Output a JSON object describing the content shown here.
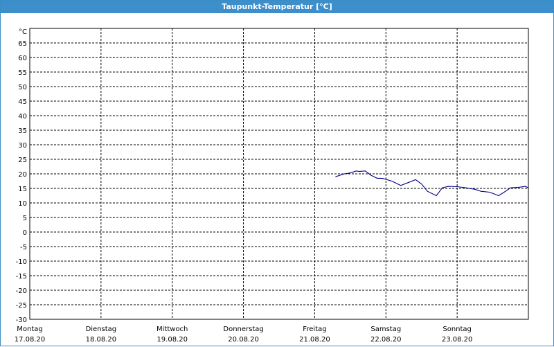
{
  "window": {
    "title": "Taupunkt-Temperatur [°C]",
    "title_bg": "#3d8fcc",
    "title_color": "#ffffff"
  },
  "chart_data": {
    "type": "line",
    "title": "Taupunkt-Temperatur [°C]",
    "ylabel": "°C",
    "xlabel": "",
    "ylim": [
      -30,
      70
    ],
    "xlim": [
      "2020-08-17 00:00",
      "2020-08-24 00:00"
    ],
    "y_ticks": [
      65,
      60,
      55,
      50,
      45,
      40,
      35,
      30,
      25,
      20,
      15,
      10,
      5,
      0,
      -5,
      -10,
      -15,
      -20,
      -25,
      -30
    ],
    "x_ticks": [
      {
        "day": "Montag",
        "date": "17.08.20"
      },
      {
        "day": "Dienstag",
        "date": "18.08.20"
      },
      {
        "day": "Mittwoch",
        "date": "19.08.20"
      },
      {
        "day": "Donnerstag",
        "date": "20.08.20"
      },
      {
        "day": "Freitag",
        "date": "21.08.20"
      },
      {
        "day": "Samstag",
        "date": "22.08.20"
      },
      {
        "day": "Sonntag",
        "date": "23.08.20"
      }
    ],
    "grid": true,
    "line_color": "#00008b",
    "series": [
      {
        "x": [
          "2020-08-21 07:00",
          "2020-08-21 10:00",
          "2020-08-21 12:00",
          "2020-08-21 14:00",
          "2020-08-21 15:00",
          "2020-08-21 17:00",
          "2020-08-21 19:00",
          "2020-08-21 21:00",
          "2020-08-21 23:00",
          "2020-08-22 02:00",
          "2020-08-22 05:00",
          "2020-08-22 08:00",
          "2020-08-22 10:00",
          "2020-08-22 12:00",
          "2020-08-22 14:00",
          "2020-08-22 17:00",
          "2020-08-22 19:00",
          "2020-08-22 21:00",
          "2020-08-23 00:00",
          "2020-08-23 03:00",
          "2020-08-23 06:00",
          "2020-08-23 08:00",
          "2020-08-23 11:00",
          "2020-08-23 14:00",
          "2020-08-23 16:00",
          "2020-08-23 18:00",
          "2020-08-23 21:00",
          "2020-08-23 23:00",
          "2020-08-23 23:59"
        ],
        "values": [
          19,
          20,
          20.3,
          21,
          20.8,
          21,
          19.5,
          18.5,
          18.4,
          17.5,
          16,
          17.2,
          18,
          16.5,
          14,
          12.5,
          15.2,
          15.7,
          15.6,
          15.2,
          14.7,
          14,
          13.7,
          12.5,
          13.8,
          15.2,
          15.4,
          15.7,
          15.2
        ]
      }
    ]
  }
}
